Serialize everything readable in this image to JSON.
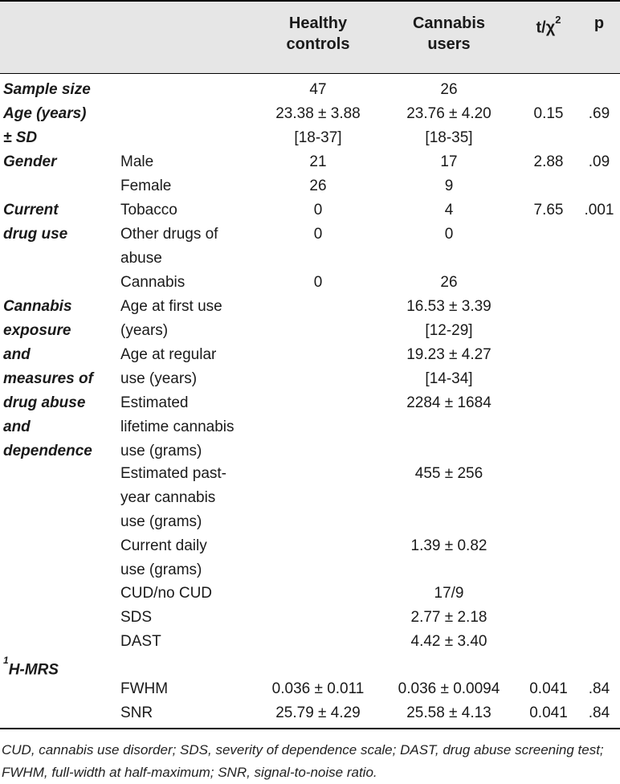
{
  "header": {
    "col1": [
      "Healthy",
      "controls"
    ],
    "col2": [
      "Cannabis",
      "users"
    ],
    "col3_base": "t/χ",
    "col3_sup": "2",
    "col4": "p"
  },
  "labels": {
    "sample_size": "Sample size",
    "age": [
      "Age (years)",
      "± SD"
    ],
    "gender": "Gender",
    "current_drug_use": [
      "Current",
      "drug use"
    ],
    "cannabis_exposure": [
      "Cannabis",
      "exposure",
      "and",
      "measures of",
      "drug abuse",
      "and",
      "dependence"
    ],
    "mrs_sup": "1",
    "mrs_base": "H-MRS"
  },
  "sublabels": {
    "male": "Male",
    "female": "Female",
    "tobacco": "Tobacco",
    "other_drugs": [
      "Other drugs of",
      "abuse"
    ],
    "cannabis": "Cannabis",
    "age_first": [
      "Age at first use",
      "(years)"
    ],
    "age_regular": [
      "Age at regular",
      "use (years)"
    ],
    "lifetime": [
      "Estimated",
      "lifetime cannabis",
      "use (grams)"
    ],
    "past_year": [
      "Estimated past-",
      "year cannabis",
      "use (grams)"
    ],
    "daily": [
      "Current daily",
      "use (grams)"
    ],
    "cud": "CUD/no CUD",
    "sds": "SDS",
    "dast": "DAST",
    "fwhm": "FWHM",
    "snr": "SNR"
  },
  "values": {
    "sample_hc": "47",
    "sample_cu": "26",
    "age_hc": [
      "23.38 ± 3.88",
      "[18-37]"
    ],
    "age_cu": [
      "23.76 ± 4.20",
      "[18-35]"
    ],
    "age_t": "0.15",
    "age_p": ".69",
    "male_hc": "21",
    "male_cu": "17",
    "gender_t": "2.88",
    "gender_p": ".09",
    "female_hc": "26",
    "female_cu": "9",
    "tobacco_hc": "0",
    "tobacco_cu": "4",
    "tobacco_t": "7.65",
    "tobacco_p": ".001",
    "other_hc": "0",
    "other_cu": "0",
    "cannabis_hc": "0",
    "cannabis_cu": "26",
    "age_first_cu": [
      "16.53 ± 3.39",
      "[12-29]"
    ],
    "age_regular_cu": [
      "19.23 ± 4.27",
      "[14-34]"
    ],
    "lifetime_cu": "2284 ± 1684",
    "past_year_cu": "455 ± 256",
    "daily_cu": "1.39 ± 0.82",
    "cud_cu": "17/9",
    "sds_cu": "2.77 ± 2.18",
    "dast_cu": "4.42 ± 3.40",
    "fwhm_hc": "0.036 ± 0.011",
    "fwhm_cu": "0.036 ± 0.0094",
    "fwhm_t": "0.041",
    "fwhm_p": ".84",
    "snr_hc": "25.79 ± 4.29",
    "snr_cu": "25.58 ± 4.13",
    "snr_t": "0.041",
    "snr_p": ".84"
  },
  "footnote": "CUD, cannabis use disorder; SDS, severity of dependence scale; DAST, drug abuse screening test; FWHM, full-width at half-maximum; SNR, signal-to-noise ratio."
}
